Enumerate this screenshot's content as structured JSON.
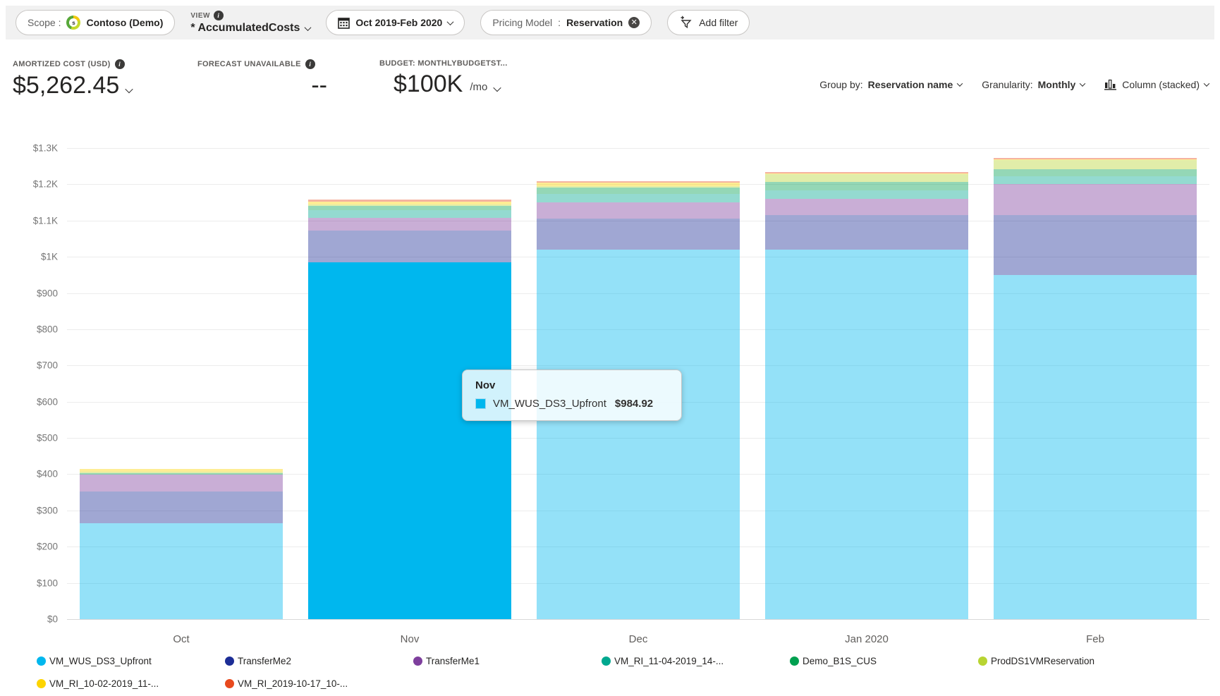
{
  "toolbar": {
    "scope": {
      "label": "Scope :",
      "value": "Contoso (Demo)",
      "logo_letter": "s"
    },
    "view": {
      "label": "VIEW",
      "value": "* AccumulatedCosts"
    },
    "date_range": "Oct 2019-Feb 2020",
    "filter": {
      "name": "Pricing Model",
      "separator": ":",
      "value": "Reservation"
    },
    "add_filter_label": "Add filter"
  },
  "metrics": {
    "amortized": {
      "label": "AMORTIZED COST (USD)",
      "value": "$5,262.45"
    },
    "forecast": {
      "label": "FORECAST UNAVAILABLE",
      "value": "--"
    },
    "budget": {
      "label": "BUDGET: MONTHLYBUDGETST...",
      "value": "$100K",
      "suffix": "/mo"
    }
  },
  "controls": {
    "group_by_label": "Group by:",
    "group_by_value": "Reservation name",
    "granularity_label": "Granularity:",
    "granularity_value": "Monthly",
    "chart_type_label": "Column (stacked)"
  },
  "tooltip": {
    "title": "Nov",
    "series": "VM_WUS_DS3_Upfront",
    "value": "$984.92",
    "color": "#00b7ee"
  },
  "chart_data": {
    "type": "bar",
    "stacked": true,
    "grid": true,
    "legend_position": "bottom",
    "categories": [
      "Oct",
      "Nov",
      "Dec",
      "Jan 2020",
      "Feb"
    ],
    "series": [
      {
        "name": "VM_WUS_DS3_Upfront",
        "color": "#00b7ee",
        "values": [
          265,
          984.92,
          1020,
          1020,
          950
        ]
      },
      {
        "name": "TransferMe2",
        "color": "#1c2d96",
        "values": [
          88,
          87,
          85,
          95,
          165
        ]
      },
      {
        "name": "TransferMe1",
        "color": "#7e3f9d",
        "values": [
          46,
          35,
          45,
          45,
          86
        ]
      },
      {
        "name": "VM_RI_11-04-2019_14-...",
        "color": "#00a88f",
        "values": [
          0,
          22,
          23,
          23,
          21
        ]
      },
      {
        "name": "Demo_B1S_CUS",
        "color": "#00a050",
        "values": [
          4,
          12,
          19,
          23,
          20
        ]
      },
      {
        "name": "ProdDS1VMReservation",
        "color": "#b8d432",
        "values": [
          3,
          4,
          3,
          23,
          25
        ]
      },
      {
        "name": "VM_RI_10-02-2019_11-...",
        "color": "#fdd400",
        "values": [
          8,
          8,
          9,
          2,
          2
        ]
      },
      {
        "name": "VM_RI_2019-10-17_10-...",
        "color": "#e8491d",
        "values": [
          0,
          4,
          4,
          3,
          3
        ]
      }
    ],
    "ylim": [
      0,
      1300
    ],
    "ytick_labels": [
      "$0",
      "$100",
      "$200",
      "$300",
      "$400",
      "$500",
      "$600",
      "$700",
      "$800",
      "$900",
      "$1K",
      "$1.1K",
      "$1.2K",
      "$1.3K"
    ],
    "highlight": {
      "category": "Nov",
      "series": "VM_WUS_DS3_Upfront"
    },
    "dim_opacity": 0.42,
    "xlabel": "",
    "ylabel": ""
  }
}
